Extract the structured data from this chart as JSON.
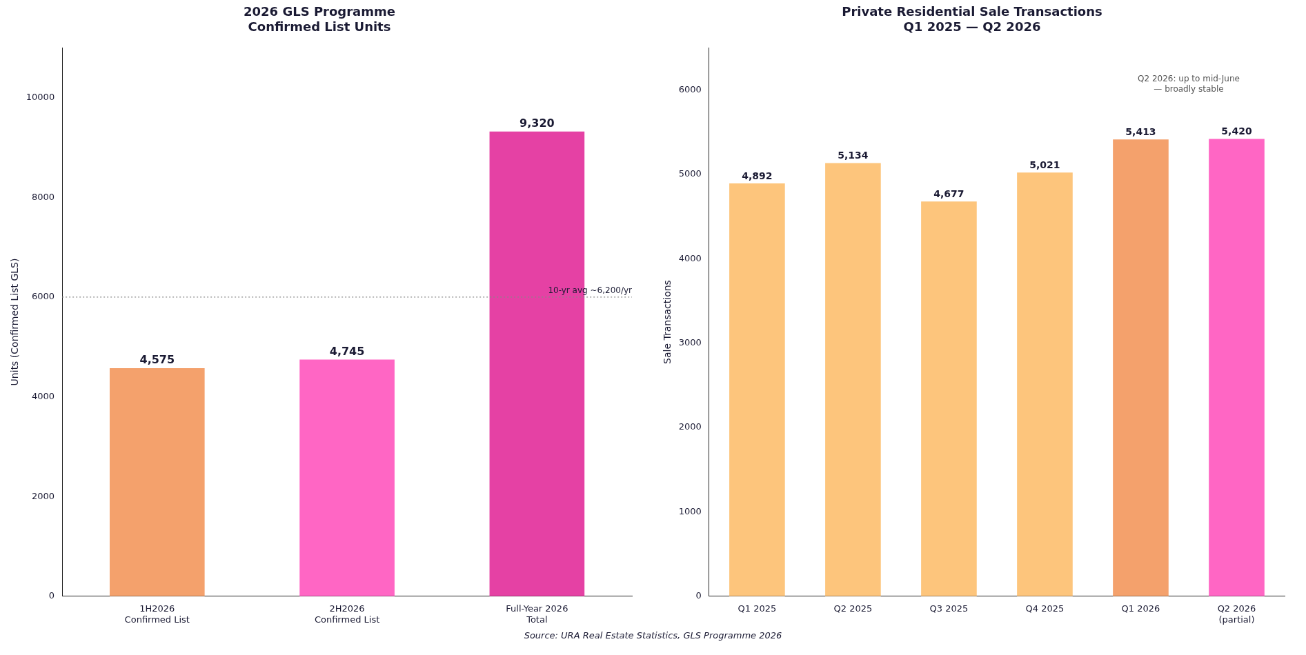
{
  "chart_data": [
    {
      "type": "bar",
      "title": "2026 GLS Programme\nConfirmed List Units",
      "ylabel": "Units (Confirmed List GLS)",
      "categories": [
        "1H2026\nConfirmed List",
        "2H2026\nConfirmed List",
        "Full-Year 2026\nTotal"
      ],
      "values": [
        4575,
        4745,
        9320
      ],
      "colors": [
        "#f4a16c",
        "#ff66c4",
        "#e541a4"
      ],
      "value_labels": [
        "4,575",
        "4,745",
        "9,320"
      ],
      "ylim": [
        0,
        11000
      ],
      "yticks": [
        0,
        2000,
        4000,
        6000,
        8000,
        10000
      ],
      "grid": false,
      "legend": false,
      "ref_lines": [
        {
          "axis": "y",
          "value": 6000,
          "label": "10-yr avg ~6,200/yr",
          "color": "#888888",
          "line_style": "dotted"
        }
      ],
      "annotations": [
        "Source: URA Real Estate Statistics, GLS Programme 2026"
      ]
    },
    {
      "type": "bar",
      "title": "Private Residential Sale Transactions\nQ1 2025 — Q2 2026",
      "ylabel": "Sale Transactions",
      "categories": [
        "Q1 2025",
        "Q2 2025",
        "Q3 2025",
        "Q4 2025",
        "Q1 2026",
        "Q2 2026\n(partial)"
      ],
      "values": [
        4892,
        5134,
        4677,
        5021,
        5413,
        5420
      ],
      "colors": [
        "#fdc57c",
        "#fdc57c",
        "#fdc57c",
        "#fdc57c",
        "#f4a16c",
        "#ff66c4"
      ],
      "value_labels": [
        "4,892",
        "5,134",
        "4,677",
        "5,021",
        "5,413",
        "5,420"
      ],
      "ylim": [
        0,
        6500
      ],
      "yticks": [
        0,
        1000,
        2000,
        3000,
        4000,
        5000,
        6000
      ],
      "grid": false,
      "legend": false,
      "annotations": [
        "Q2 2026: up to mid-June\n— broadly stable"
      ]
    }
  ]
}
